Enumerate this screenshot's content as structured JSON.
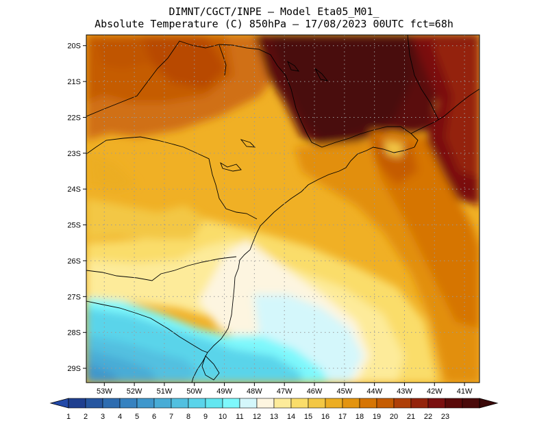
{
  "header": {
    "line1": "DIMNT/CGCT/INPE —  Model Eta05_M01_",
    "line2": "Absolute Temperature (C) 850hPa —  17/08/2023 00UTC fct=68h"
  },
  "axes": {
    "lat_labels": [
      "20S",
      "21S",
      "22S",
      "23S",
      "24S",
      "25S",
      "26S",
      "27S",
      "28S",
      "29S"
    ],
    "lon_labels": [
      "53W",
      "52W",
      "51W",
      "50W",
      "49W",
      "48W",
      "47W",
      "46W",
      "45W",
      "44W",
      "43W",
      "42W",
      "41W"
    ]
  },
  "colorbar": {
    "labels": [
      "1",
      "2",
      "3",
      "4",
      "5",
      "6",
      "7",
      "8",
      "9",
      "10",
      "11",
      "12",
      "13",
      "14",
      "15",
      "16",
      "17",
      "18",
      "19",
      "20",
      "21",
      "22",
      "23"
    ],
    "colors": [
      "#1f3f8f",
      "#2656a0",
      "#2d6cb0",
      "#3682c0",
      "#3f97cc",
      "#48acd6",
      "#52c0e0",
      "#5ad4ea",
      "#62e6f0",
      "#7ef8fc",
      "#d4f7fb",
      "#fdf5e0",
      "#fdeb9a",
      "#fadd6a",
      "#f3c744",
      "#ecad23",
      "#e39410",
      "#d67504",
      "#c55c02",
      "#ae3f08",
      "#94240c",
      "#7a1010",
      "#5a0a0a",
      "#4a0a0a"
    ],
    "under_color": "#2249a8",
    "over_color": "#3a0808"
  },
  "map": {
    "lon_range": [
      53.6,
      40.5
    ],
    "lat_range": [
      19.7,
      29.4
    ],
    "grid": true,
    "background": "#f0b025"
  }
}
